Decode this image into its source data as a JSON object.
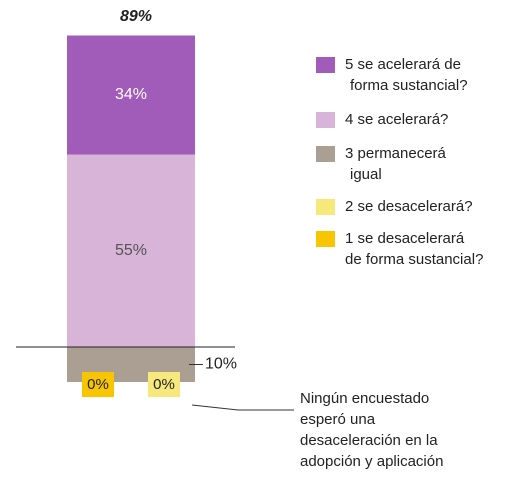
{
  "chart_data": {
    "type": "diverging_stacked_bar",
    "total_label": "89%",
    "series": [
      {
        "name": "5 se acelerará de\nforma sustancial?",
        "color": "#a05cb8",
        "direction": "up",
        "values": [
          34
        ],
        "value_labels": [
          "34%"
        ]
      },
      {
        "name": "4 se acelerará?",
        "color": "#d7b4d8",
        "direction": "up",
        "values": [
          55
        ],
        "value_labels": [
          "55%"
        ]
      },
      {
        "name": "3 permanecerá\nigual",
        "color": "#ab9f94",
        "direction": "down",
        "values": [
          10
        ],
        "value_labels": [
          "10%"
        ]
      },
      {
        "name": "2 se desacelerará?",
        "color": "#f6e87a",
        "direction": "down",
        "values": [
          0
        ],
        "value_labels": [
          "0%"
        ]
      },
      {
        "name": "1 se desacelerará\nde forma sustancial?",
        "color": "#f7c600",
        "direction": "down",
        "values": [
          0
        ],
        "value_labels": [
          "0%"
        ]
      }
    ],
    "annotation": "Ningún encuestado\nesperó una\ndesaceleración en la\nadopción y aplicación"
  }
}
